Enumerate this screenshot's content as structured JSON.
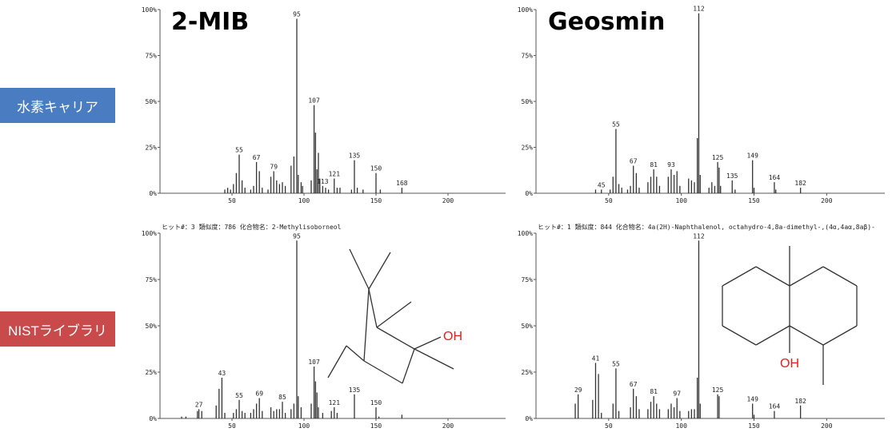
{
  "row_labels": [
    {
      "text": "水素キャリア",
      "color": "#4a7cc2"
    },
    {
      "text": "NISTライブラリ",
      "color": "#c94a4b"
    }
  ],
  "titles": {
    "left": "2-MIB",
    "right": "Geosmin"
  },
  "structure_labels": {
    "mib_oh": "OH",
    "geo_oh": "OH",
    "oh_color": "#e02020"
  },
  "chart_data": [
    {
      "type": "bar",
      "header": "",
      "xlim": [
        0,
        240
      ],
      "ylim": [
        0,
        100
      ],
      "xticks": [
        50,
        100,
        150,
        200
      ],
      "yticks": [
        "0%",
        "25%",
        "50%",
        "75%",
        "100%"
      ],
      "peaks": [
        [
          45,
          2
        ],
        [
          47,
          3
        ],
        [
          49,
          2
        ],
        [
          51,
          5
        ],
        [
          53,
          11
        ],
        [
          55,
          21
        ],
        [
          57,
          7
        ],
        [
          59,
          3
        ],
        [
          63,
          2
        ],
        [
          65,
          4
        ],
        [
          67,
          17
        ],
        [
          69,
          12
        ],
        [
          71,
          3
        ],
        [
          75,
          2
        ],
        [
          77,
          9
        ],
        [
          79,
          12
        ],
        [
          81,
          7
        ],
        [
          83,
          5
        ],
        [
          85,
          6
        ],
        [
          87,
          4
        ],
        [
          91,
          15
        ],
        [
          93,
          20
        ],
        [
          95,
          95
        ],
        [
          96,
          10
        ],
        [
          98,
          6
        ],
        [
          99,
          4
        ],
        [
          105,
          7
        ],
        [
          107,
          48
        ],
        [
          108,
          33
        ],
        [
          109,
          13
        ],
        [
          110,
          22
        ],
        [
          111,
          8
        ],
        [
          113,
          4
        ],
        [
          115,
          3
        ],
        [
          117,
          2
        ],
        [
          121,
          8
        ],
        [
          123,
          3
        ],
        [
          125,
          3
        ],
        [
          133,
          2
        ],
        [
          135,
          18
        ],
        [
          137,
          3
        ],
        [
          141,
          2
        ],
        [
          150,
          11
        ],
        [
          153,
          2
        ],
        [
          168,
          3
        ]
      ],
      "labels": [
        [
          55,
          21,
          "55"
        ],
        [
          67,
          17,
          "67"
        ],
        [
          79,
          12,
          "79"
        ],
        [
          95,
          95,
          "95"
        ],
        [
          107,
          48,
          "107"
        ],
        [
          113,
          4,
          "113"
        ],
        [
          121,
          8,
          "121"
        ],
        [
          135,
          18,
          "135"
        ],
        [
          150,
          11,
          "150"
        ],
        [
          168,
          3,
          "168"
        ]
      ]
    },
    {
      "type": "bar",
      "header": "",
      "xlim": [
        0,
        240
      ],
      "ylim": [
        0,
        100
      ],
      "xticks": [
        50,
        100,
        150,
        200
      ],
      "yticks": [
        "0%",
        "25%",
        "50%",
        "75%",
        "100%"
      ],
      "peaks": [
        [
          41,
          2
        ],
        [
          45,
          2
        ],
        [
          51,
          2
        ],
        [
          53,
          9
        ],
        [
          55,
          35
        ],
        [
          57,
          5
        ],
        [
          59,
          3
        ],
        [
          63,
          2
        ],
        [
          65,
          4
        ],
        [
          67,
          15
        ],
        [
          69,
          11
        ],
        [
          71,
          3
        ],
        [
          77,
          6
        ],
        [
          79,
          9
        ],
        [
          81,
          13
        ],
        [
          83,
          9
        ],
        [
          85,
          4
        ],
        [
          91,
          9
        ],
        [
          93,
          13
        ],
        [
          95,
          10
        ],
        [
          97,
          12
        ],
        [
          99,
          4
        ],
        [
          105,
          8
        ],
        [
          107,
          7
        ],
        [
          109,
          6
        ],
        [
          111,
          30
        ],
        [
          112,
          98
        ],
        [
          113,
          10
        ],
        [
          119,
          3
        ],
        [
          121,
          6
        ],
        [
          123,
          4
        ],
        [
          125,
          17
        ],
        [
          126,
          14
        ],
        [
          127,
          4
        ],
        [
          135,
          7
        ],
        [
          137,
          2
        ],
        [
          149,
          18
        ],
        [
          150,
          3
        ],
        [
          164,
          6
        ],
        [
          165,
          2
        ],
        [
          182,
          3
        ]
      ],
      "labels": [
        [
          45,
          2,
          "45"
        ],
        [
          55,
          35,
          "55"
        ],
        [
          67,
          15,
          "67"
        ],
        [
          81,
          13,
          "81"
        ],
        [
          93,
          13,
          "93"
        ],
        [
          112,
          98,
          "112"
        ],
        [
          125,
          17,
          "125"
        ],
        [
          135,
          7,
          "135"
        ],
        [
          149,
          18,
          "149"
        ],
        [
          164,
          6,
          "164"
        ],
        [
          182,
          3,
          "182"
        ]
      ]
    },
    {
      "type": "bar",
      "header": "ヒット#：3 類似度：786  化合物名：2-Methylisoborneol",
      "xlim": [
        0,
        240
      ],
      "ylim": [
        0,
        100
      ],
      "xticks": [
        50,
        100,
        150,
        200
      ],
      "yticks": [
        "0%",
        "25%",
        "50%",
        "75%",
        "100%"
      ],
      "peaks": [
        [
          15,
          1
        ],
        [
          18,
          1
        ],
        [
          26,
          4
        ],
        [
          27,
          5
        ],
        [
          29,
          4
        ],
        [
          39,
          7
        ],
        [
          41,
          16
        ],
        [
          43,
          22
        ],
        [
          45,
          3
        ],
        [
          51,
          3
        ],
        [
          53,
          5
        ],
        [
          55,
          10
        ],
        [
          57,
          4
        ],
        [
          59,
          3
        ],
        [
          63,
          3
        ],
        [
          65,
          5
        ],
        [
          67,
          8
        ],
        [
          69,
          11
        ],
        [
          71,
          4
        ],
        [
          77,
          6
        ],
        [
          79,
          4
        ],
        [
          81,
          5
        ],
        [
          83,
          5
        ],
        [
          85,
          9
        ],
        [
          87,
          3
        ],
        [
          91,
          5
        ],
        [
          93,
          8
        ],
        [
          95,
          96
        ],
        [
          96,
          12
        ],
        [
          98,
          6
        ],
        [
          105,
          8
        ],
        [
          107,
          28
        ],
        [
          108,
          20
        ],
        [
          109,
          14
        ],
        [
          110,
          6
        ],
        [
          113,
          3
        ],
        [
          119,
          4
        ],
        [
          121,
          6
        ],
        [
          123,
          3
        ],
        [
          135,
          13
        ],
        [
          150,
          6
        ],
        [
          152,
          1
        ],
        [
          168,
          2
        ]
      ],
      "labels": [
        [
          27,
          5,
          "27"
        ],
        [
          43,
          22,
          "43"
        ],
        [
          55,
          10,
          "55"
        ],
        [
          69,
          11,
          "69"
        ],
        [
          85,
          9,
          "85"
        ],
        [
          95,
          96,
          "95"
        ],
        [
          107,
          28,
          "107"
        ],
        [
          121,
          6,
          "121"
        ],
        [
          135,
          13,
          "135"
        ],
        [
          150,
          6,
          "150"
        ]
      ]
    },
    {
      "type": "bar",
      "header": "ヒット#：1 類似度：844  化合物名：4a(2H)-Naphthalenol, octahydro-4,8a-dimethyl-,(4α,4aα,8aβ)-",
      "xlim": [
        0,
        240
      ],
      "ylim": [
        0,
        100
      ],
      "xticks": [
        50,
        100,
        150,
        200
      ],
      "yticks": [
        "0%",
        "25%",
        "50%",
        "75%",
        "100%"
      ],
      "peaks": [
        [
          27,
          8
        ],
        [
          29,
          13
        ],
        [
          39,
          10
        ],
        [
          41,
          30
        ],
        [
          43,
          24
        ],
        [
          45,
          3
        ],
        [
          53,
          8
        ],
        [
          55,
          27
        ],
        [
          57,
          4
        ],
        [
          65,
          6
        ],
        [
          67,
          16
        ],
        [
          69,
          12
        ],
        [
          71,
          5
        ],
        [
          77,
          5
        ],
        [
          79,
          9
        ],
        [
          81,
          12
        ],
        [
          83,
          8
        ],
        [
          85,
          5
        ],
        [
          91,
          5
        ],
        [
          93,
          8
        ],
        [
          95,
          6
        ],
        [
          97,
          11
        ],
        [
          99,
          4
        ],
        [
          105,
          4
        ],
        [
          107,
          5
        ],
        [
          109,
          5
        ],
        [
          111,
          22
        ],
        [
          112,
          96
        ],
        [
          113,
          8
        ],
        [
          125,
          13
        ],
        [
          126,
          12
        ],
        [
          149,
          8
        ],
        [
          150,
          2
        ],
        [
          164,
          4
        ],
        [
          182,
          7
        ]
      ],
      "labels": [
        [
          29,
          13,
          "29"
        ],
        [
          41,
          30,
          "41"
        ],
        [
          55,
          27,
          "55"
        ],
        [
          67,
          16,
          "67"
        ],
        [
          81,
          12,
          "81"
        ],
        [
          97,
          11,
          "97"
        ],
        [
          112,
          96,
          "112"
        ],
        [
          125,
          13,
          "125"
        ],
        [
          149,
          8,
          "149"
        ],
        [
          164,
          4,
          "164"
        ],
        [
          182,
          7,
          "182"
        ]
      ]
    }
  ]
}
